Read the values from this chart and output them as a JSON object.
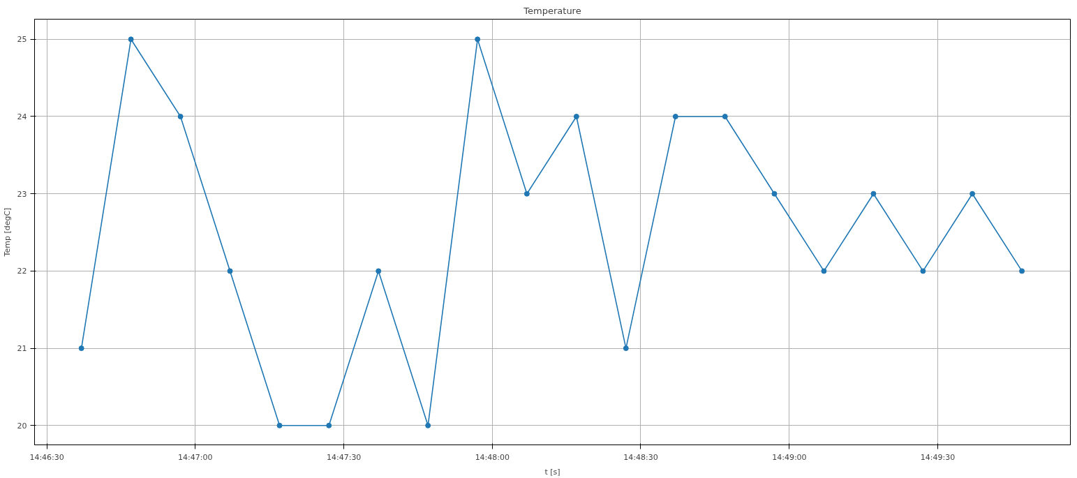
{
  "chart_data": {
    "type": "line",
    "title": "Temperature",
    "xlabel": "t [s]",
    "ylabel": "Temp [degC]",
    "x": [
      14.77694,
      14.77972,
      14.7825,
      14.78528,
      14.78806,
      14.79083,
      14.79361,
      14.79639,
      14.79917,
      14.80194,
      14.80472,
      14.8075,
      14.81028,
      14.81306,
      14.81583,
      14.81861,
      14.82139,
      14.82417,
      14.82694,
      14.82972
    ],
    "series": [
      {
        "color": "#1f77b4",
        "values": [
          21,
          25,
          24,
          22,
          20,
          20,
          22,
          20,
          25,
          23,
          24,
          21,
          24,
          24,
          23,
          22,
          23,
          22,
          23,
          22
        ]
      }
    ],
    "xlim": [
      14.77431,
      14.83244
    ],
    "xticks": [
      {
        "value": 14.775,
        "label": "14:46:30"
      },
      {
        "value": 14.78333,
        "label": "14:47:00"
      },
      {
        "value": 14.79167,
        "label": "14:47:30"
      },
      {
        "value": 14.8,
        "label": "14:48:00"
      },
      {
        "value": 14.80833,
        "label": "14:48:30"
      },
      {
        "value": 14.81667,
        "label": "14:49:00"
      },
      {
        "value": 14.825,
        "label": "14:49:30"
      }
    ],
    "ylim": [
      19.75,
      25.26
    ],
    "yticks": [
      20,
      21,
      22,
      23,
      24,
      25
    ],
    "grid": true,
    "marker": "circle",
    "line_style": "solid"
  }
}
